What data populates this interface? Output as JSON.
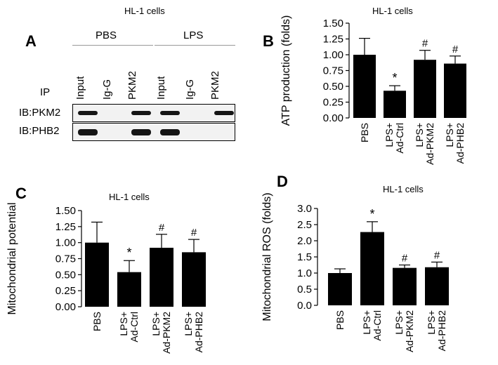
{
  "panelA": {
    "letter": "A",
    "title": "HL-1 cells",
    "groups": [
      "PBS",
      "LPS"
    ],
    "ip_label": "IP",
    "lanes": [
      "Input",
      "Ig-G",
      "PKM2",
      "Input",
      "Ig-G",
      "PKM2"
    ],
    "blots": [
      {
        "label": "IB:PKM2",
        "bands": [
          1,
          0,
          1,
          1,
          0,
          1
        ]
      },
      {
        "label": "IB:PHB2",
        "bands": [
          1,
          0,
          1,
          1,
          0,
          0
        ]
      }
    ]
  },
  "chart_data": [
    {
      "panel": "B",
      "type": "bar",
      "title": "HL-1 cells",
      "ylabel": "ATP production (folds)",
      "categories": [
        "PBS",
        "LPS+\nAd-Ctrl",
        "LPS+\nAd-PKM2",
        "LPS+\nAd-PHB2"
      ],
      "values": [
        1.0,
        0.43,
        0.92,
        0.86
      ],
      "errors": [
        0.26,
        0.08,
        0.15,
        0.12
      ],
      "marks": [
        "",
        "*",
        "#",
        "#"
      ],
      "ylim": [
        0,
        1.5
      ],
      "yticks": [
        "0.00",
        "0.25",
        "0.50",
        "0.75",
        "1.00",
        "1.25",
        "1.50"
      ],
      "bar_color": "#000000"
    },
    {
      "panel": "C",
      "type": "bar",
      "title": "HL-1 cells",
      "ylabel": "Mitochondrial potential",
      "categories": [
        "PBS",
        "LPS+\nAd-Ctrl",
        "LPS+\nAd-PKM2",
        "LPS+\nAd-PHB2"
      ],
      "values": [
        1.0,
        0.54,
        0.92,
        0.85
      ],
      "errors": [
        0.32,
        0.18,
        0.21,
        0.2
      ],
      "marks": [
        "",
        "*",
        "#",
        "#"
      ],
      "ylim": [
        0,
        1.5
      ],
      "yticks": [
        "0.00",
        "0.25",
        "0.50",
        "0.75",
        "1.00",
        "1.25",
        "1.50"
      ],
      "bar_color": "#000000"
    },
    {
      "panel": "D",
      "type": "bar",
      "title": "HL-1 cells",
      "ylabel": "Mitochondrial ROS (folds)",
      "categories": [
        "PBS",
        "LPS+\nAd-Ctrl",
        "LPS+\nAd-PKM2",
        "LPS+\nAd-PHB2"
      ],
      "values": [
        1.0,
        2.27,
        1.16,
        1.18
      ],
      "errors": [
        0.13,
        0.32,
        0.09,
        0.16
      ],
      "marks": [
        "",
        "*",
        "#",
        "#"
      ],
      "ylim": [
        0,
        3.0
      ],
      "yticks": [
        "0.0",
        "0.5",
        "1.0",
        "1.5",
        "2.0",
        "2.5",
        "3.0"
      ],
      "bar_color": "#000000"
    }
  ]
}
